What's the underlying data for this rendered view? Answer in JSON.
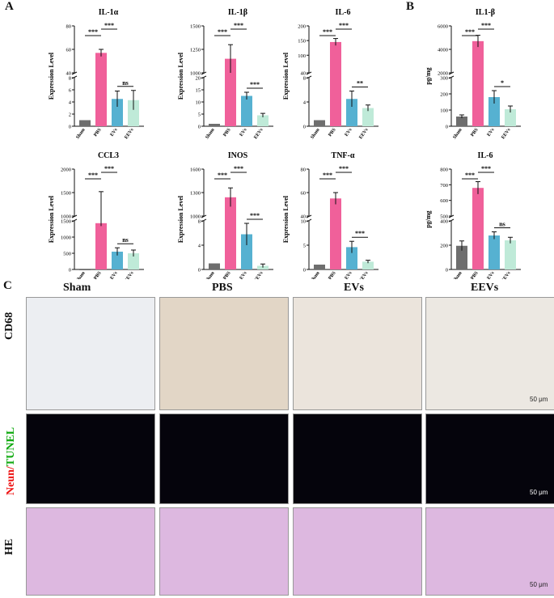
{
  "panel_letters": {
    "a": "A",
    "b": "B",
    "c": "C"
  },
  "group_colors": {
    "Sham": "#6e6e6e",
    "PBS": "#f0609a",
    "EVs": "#56b1d1",
    "EEVs": "#bfead8"
  },
  "chart_data": [
    {
      "type": "bar",
      "panel": "A",
      "title": "IL-1α",
      "ylabel": "Expression Level",
      "categories": [
        "Sham",
        "PBS",
        "EVs",
        "EEVs"
      ],
      "values": [
        1,
        57,
        4.5,
        4.3
      ],
      "errors": [
        0,
        3,
        1.3,
        1.6
      ],
      "axis_break": {
        "low": [
          0,
          8
        ],
        "high": [
          40,
          80
        ]
      },
      "low_ticks": [
        "0",
        "2",
        "4",
        "6",
        "8"
      ],
      "high_ticks": [
        "40",
        "60",
        "80"
      ],
      "significance": [
        {
          "from": 1,
          "to": 2,
          "label": "***"
        },
        {
          "from": 0,
          "to": 1,
          "label": "***"
        },
        {
          "from": 2,
          "to": 3,
          "label": "ns"
        }
      ]
    },
    {
      "type": "bar",
      "panel": "A",
      "title": "IL-1β",
      "ylabel": "Expression Level",
      "categories": [
        "Sham",
        "PBS",
        "EVs",
        "EEVs"
      ],
      "values": [
        1,
        1150,
        12.5,
        4.5
      ],
      "errors": [
        0,
        150,
        1.5,
        0.8
      ],
      "axis_break": {
        "low": [
          0,
          20
        ],
        "high": [
          1000,
          1500
        ]
      },
      "low_ticks": [
        "0",
        "5",
        "10",
        "15",
        "20"
      ],
      "high_ticks": [
        "1000",
        "1250",
        "1500"
      ],
      "significance": [
        {
          "from": 1,
          "to": 2,
          "label": "***"
        },
        {
          "from": 0,
          "to": 1,
          "label": "***"
        },
        {
          "from": 2,
          "to": 3,
          "label": "***"
        }
      ]
    },
    {
      "type": "bar",
      "panel": "A",
      "title": "IL-6",
      "ylabel": "Expression Level",
      "categories": [
        "Sham",
        "PBS",
        "EVs",
        "EEVs"
      ],
      "values": [
        1,
        145,
        4.5,
        3
      ],
      "errors": [
        0,
        12,
        1.3,
        0.5
      ],
      "axis_break": {
        "low": [
          0,
          8
        ],
        "high": [
          40,
          200
        ]
      },
      "low_ticks": [
        "0",
        "4",
        "8"
      ],
      "high_ticks": [
        "40",
        "100",
        "150",
        "200"
      ],
      "significance": [
        {
          "from": 1,
          "to": 2,
          "label": "***"
        },
        {
          "from": 0,
          "to": 1,
          "label": "***"
        },
        {
          "from": 2,
          "to": 3,
          "label": "**"
        }
      ]
    },
    {
      "type": "bar",
      "panel": "A",
      "title": "CCL3",
      "ylabel": "Expression Level",
      "categories": [
        "Sham",
        "PBS",
        "EVs",
        "EEVs"
      ],
      "values": [
        0.1,
        1430,
        550,
        500
      ],
      "errors": [
        0,
        90,
        120,
        100
      ],
      "axis_break": {
        "low": [
          0,
          1500
        ],
        "high": [
          1000,
          2000
        ]
      },
      "low_ticks": [
        "0",
        "500",
        "1000",
        "1500"
      ],
      "high_ticks": [
        "1000",
        "1500",
        "2000"
      ],
      "significance": [
        {
          "from": 1,
          "to": 2,
          "label": "***"
        },
        {
          "from": 0,
          "to": 1,
          "label": "***"
        },
        {
          "from": 2,
          "to": 3,
          "label": "ns"
        }
      ]
    },
    {
      "type": "bar",
      "panel": "A",
      "title": "INOS",
      "ylabel": "Expression Level",
      "categories": [
        "Sham",
        "PBS",
        "EVs",
        "EEVs"
      ],
      "values": [
        1,
        1240,
        5.8,
        0.6
      ],
      "errors": [
        0,
        120,
        1.8,
        0.3
      ],
      "axis_break": {
        "low": [
          0,
          8
        ],
        "high": [
          1000,
          1600
        ]
      },
      "low_ticks": [
        "0",
        "4",
        "8"
      ],
      "high_ticks": [
        "1000",
        "1300",
        "1600"
      ],
      "significance": [
        {
          "from": 1,
          "to": 2,
          "label": "***"
        },
        {
          "from": 0,
          "to": 1,
          "label": "***"
        },
        {
          "from": 2,
          "to": 3,
          "label": "***"
        }
      ]
    },
    {
      "type": "bar",
      "panel": "A",
      "title": "TNF-α",
      "ylabel": "Expression Level",
      "categories": [
        "Sham",
        "PBS",
        "EVs",
        "EEVs"
      ],
      "values": [
        1,
        55,
        4.6,
        1.6
      ],
      "errors": [
        0,
        5,
        1.2,
        0.3
      ],
      "axis_break": {
        "low": [
          0,
          10
        ],
        "high": [
          40,
          80
        ]
      },
      "low_ticks": [
        "0",
        "5",
        "10"
      ],
      "high_ticks": [
        "40",
        "60",
        "80"
      ],
      "significance": [
        {
          "from": 1,
          "to": 2,
          "label": "***"
        },
        {
          "from": 0,
          "to": 1,
          "label": "***"
        },
        {
          "from": 2,
          "to": 3,
          "label": "***"
        }
      ]
    },
    {
      "type": "bar",
      "panel": "B",
      "title": "IL1-β",
      "ylabel": "pg/mg",
      "categories": [
        "Sham",
        "PBS",
        "EVs",
        "EEVs"
      ],
      "values": [
        60,
        4700,
        180,
        105
      ],
      "errors": [
        10,
        500,
        40,
        20
      ],
      "axis_break": {
        "low": [
          0,
          300
        ],
        "high": [
          2000,
          6000
        ]
      },
      "low_ticks": [
        "0",
        "100",
        "200",
        "300"
      ],
      "high_ticks": [
        "2000",
        "4000",
        "6000"
      ],
      "significance": [
        {
          "from": 1,
          "to": 2,
          "label": "***"
        },
        {
          "from": 0,
          "to": 1,
          "label": "***"
        },
        {
          "from": 2,
          "to": 3,
          "label": "*"
        }
      ]
    },
    {
      "type": "bar",
      "panel": "B",
      "title": "IL-6",
      "ylabel": "pg/mg",
      "categories": [
        "Sham",
        "PBS",
        "EVs",
        "EEVs"
      ],
      "values": [
        195,
        680,
        280,
        240
      ],
      "errors": [
        40,
        40,
        30,
        25
      ],
      "axis_break": {
        "low": [
          0,
          400
        ],
        "high": [
          500,
          800
        ]
      },
      "low_ticks": [
        "0",
        "200",
        "400"
      ],
      "high_ticks": [
        "500",
        "600",
        "700",
        "800"
      ],
      "significance": [
        {
          "from": 1,
          "to": 2,
          "label": "***"
        },
        {
          "from": 0,
          "to": 1,
          "label": "***"
        },
        {
          "from": 2,
          "to": 3,
          "label": "ns"
        }
      ]
    }
  ],
  "micrograph": {
    "columns": [
      "Sham",
      "PBS",
      "EVs",
      "EEVs"
    ],
    "row_labels": {
      "cd68": "CD68",
      "neun": "Neun/",
      "tunel": "TUNEL",
      "he": "HE"
    },
    "scale_bar": "50 μm"
  }
}
